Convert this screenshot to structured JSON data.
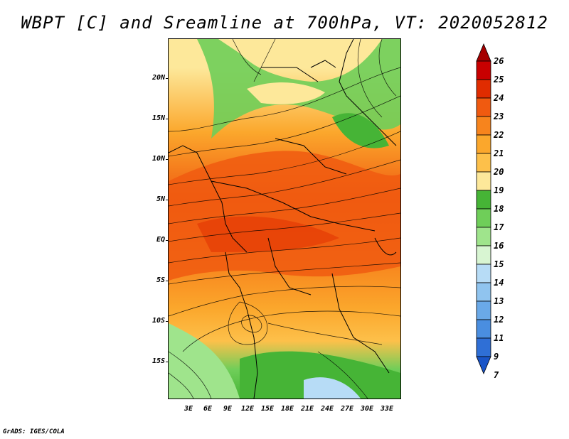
{
  "title": "WBPT [C] and Sreamline at 700hPa, VT: 2020052812",
  "credit": "GrADS: IGES/COLA",
  "y_axis_labels": [
    "20N",
    "15N",
    "10N",
    "5N",
    "EQ",
    "5S",
    "10S",
    "15S"
  ],
  "x_axis_labels": [
    "3E",
    "6E",
    "9E",
    "12E",
    "15E",
    "18E",
    "21E",
    "24E",
    "27E",
    "30E",
    "33E"
  ],
  "colorbar": {
    "labels": [
      "26",
      "25",
      "24",
      "23",
      "22",
      "21",
      "20",
      "19",
      "18",
      "17",
      "16",
      "15",
      "14",
      "13",
      "12",
      "11",
      "9",
      "7"
    ],
    "colors": [
      "#a50000",
      "#c80000",
      "#e02c00",
      "#f05a10",
      "#f7841d",
      "#fba72c",
      "#fdc04a",
      "#fde89a",
      "#46b436",
      "#6fce59",
      "#9fe48c",
      "#d8f5d2",
      "#b7dcf6",
      "#90c4ef",
      "#6aa9e8",
      "#4a8ee0",
      "#2f6fd6",
      "#1a55c8"
    ]
  }
}
